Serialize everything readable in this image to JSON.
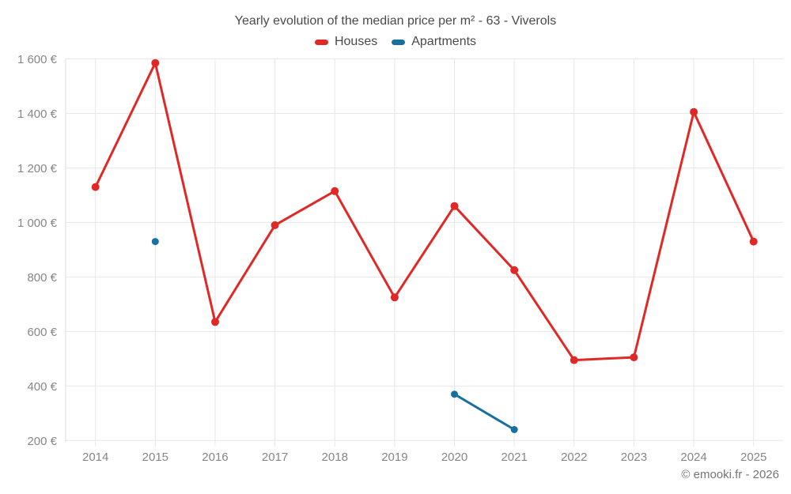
{
  "header": {
    "title": "Yearly evolution of the median price per m² - 63 - Viverols"
  },
  "legend": {
    "items": [
      {
        "label": "Houses",
        "color": "#e02826"
      },
      {
        "label": "Apartments",
        "color": "#1770a0"
      }
    ]
  },
  "footer": {
    "credit": "© emooki.fr - 2026"
  },
  "chart_data": {
    "type": "line",
    "title": "Yearly evolution of the median price per m² - 63 - Viverols",
    "categories": [
      2014,
      2015,
      2016,
      2017,
      2018,
      2019,
      2020,
      2021,
      2022,
      2023,
      2024,
      2025
    ],
    "series": [
      {
        "name": "Houses",
        "color": "#e02826",
        "values": [
          1130,
          1585,
          635,
          990,
          1115,
          725,
          1060,
          825,
          495,
          505,
          1405,
          930
        ]
      },
      {
        "name": "Apartments",
        "color": "#1770a0",
        "values": [
          null,
          930,
          null,
          null,
          null,
          null,
          370,
          240,
          null,
          null,
          null,
          null
        ]
      }
    ],
    "xlabel": "",
    "ylabel": "",
    "ylim": [
      200,
      1600
    ],
    "y_tick_step": 200,
    "y_tick_suffix": "€",
    "grid": true,
    "legend_position": "top-center"
  }
}
